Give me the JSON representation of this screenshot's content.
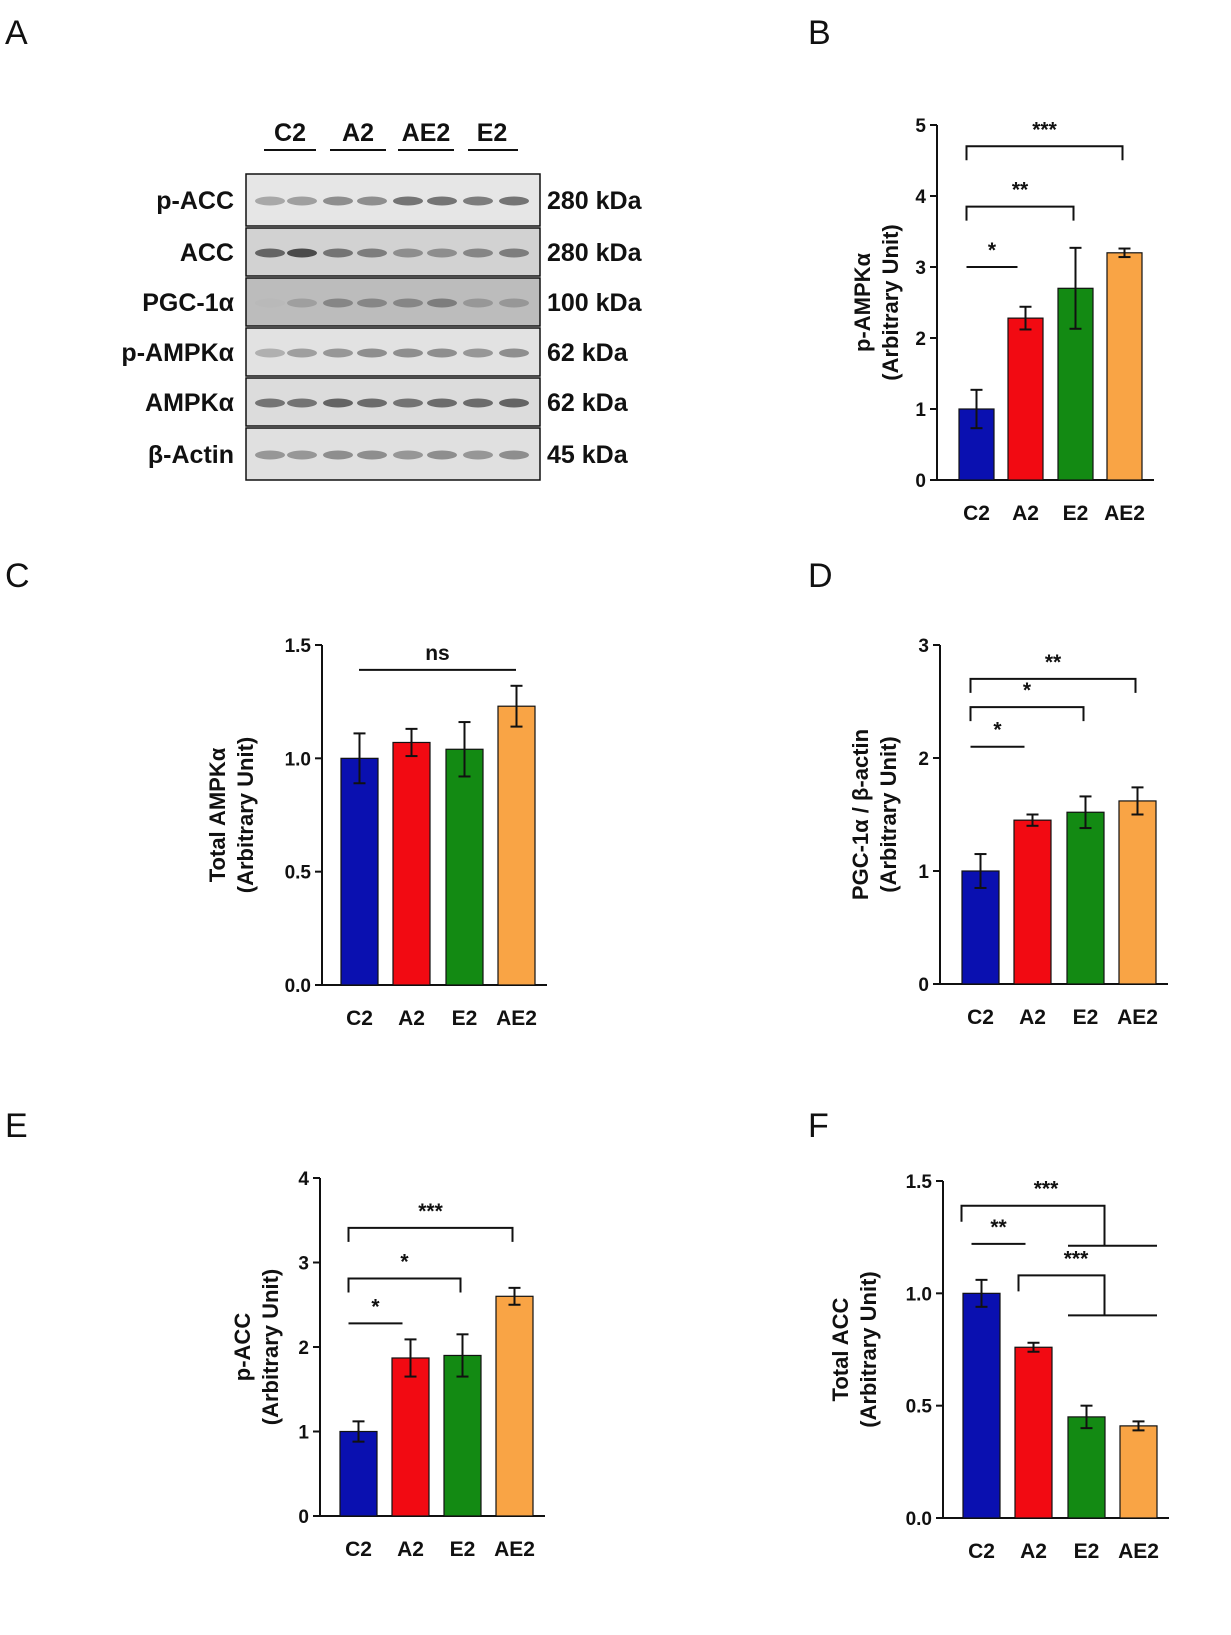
{
  "panel_letters": [
    "A",
    "B",
    "C",
    "D",
    "E",
    "F"
  ],
  "blot": {
    "groups": [
      "C2",
      "A2",
      "AE2",
      "E2"
    ],
    "rows": [
      {
        "label": "p-ACC",
        "size": "280 kDa"
      },
      {
        "label": "ACC",
        "size": "280 kDa"
      },
      {
        "label": "PGC-1α",
        "size": "100 kDa"
      },
      {
        "label": "p-AMPKα",
        "size": "62 kDa"
      },
      {
        "label": "AMPKα",
        "size": "62 kDa"
      },
      {
        "label": "β-Actin",
        "size": "45 kDa"
      }
    ]
  },
  "colors": {
    "C2": "#0a10b0",
    "A2": "#f20a12",
    "E2": "#138a13",
    "AE2": "#f9a445"
  },
  "chart_data": [
    {
      "panel": "B",
      "type": "bar",
      "categories": [
        "C2",
        "A2",
        "E2",
        "AE2"
      ],
      "values": [
        1.0,
        2.28,
        2.7,
        3.2
      ],
      "errors": [
        0.27,
        0.16,
        0.57,
        0.06
      ],
      "ylabel_lines": [
        "p-AMPKα",
        "(Arbitrary Unit)"
      ],
      "ylim": [
        0,
        5
      ],
      "yticks": [
        "0",
        "1",
        "2",
        "3",
        "4",
        "5"
      ],
      "significance": [
        {
          "type": "line",
          "from": "C2",
          "to": "A2",
          "label": "*"
        },
        {
          "type": "bracket",
          "from": "C2",
          "to": "E2",
          "label": "**"
        },
        {
          "type": "bracket",
          "from": "C2",
          "to": "AE2",
          "label": "***"
        }
      ]
    },
    {
      "panel": "C",
      "type": "bar",
      "categories": [
        "C2",
        "A2",
        "E2",
        "AE2"
      ],
      "values": [
        1.0,
        1.07,
        1.04,
        1.23
      ],
      "errors": [
        0.11,
        0.06,
        0.12,
        0.09
      ],
      "ylabel_lines": [
        "Total AMPKα",
        "(Arbitrary Unit)"
      ],
      "ylim": [
        0,
        1.5
      ],
      "yticks": [
        "0.0",
        "0.5",
        "1.0",
        "1.5"
      ],
      "significance": [
        {
          "type": "line",
          "from": "C2",
          "to": "AE2",
          "label": "ns"
        }
      ]
    },
    {
      "panel": "D",
      "type": "bar",
      "categories": [
        "C2",
        "A2",
        "E2",
        "AE2"
      ],
      "values": [
        1.0,
        1.45,
        1.52,
        1.62
      ],
      "errors": [
        0.15,
        0.05,
        0.14,
        0.12
      ],
      "ylabel_lines": [
        "PGC-1α / β-actin",
        "(Arbitrary Unit)"
      ],
      "ylim": [
        0,
        3
      ],
      "yticks": [
        "0",
        "1",
        "2",
        "3"
      ],
      "significance": [
        {
          "type": "line",
          "from": "C2",
          "to": "A2",
          "label": "*"
        },
        {
          "type": "bracket",
          "from": "C2",
          "to": "E2",
          "label": "*"
        },
        {
          "type": "bracket",
          "from": "C2",
          "to": "AE2",
          "label": "**"
        }
      ]
    },
    {
      "panel": "E",
      "type": "bar",
      "categories": [
        "C2",
        "A2",
        "E2",
        "AE2"
      ],
      "values": [
        1.0,
        1.87,
        1.9,
        2.6
      ],
      "errors": [
        0.12,
        0.22,
        0.25,
        0.1
      ],
      "ylabel_lines": [
        "p-ACC",
        "(Arbitrary Unit)"
      ],
      "ylim": [
        0,
        4
      ],
      "yticks": [
        "0",
        "1",
        "2",
        "3",
        "4"
      ],
      "significance": [
        {
          "type": "line",
          "from": "C2",
          "to": "A2",
          "label": "*"
        },
        {
          "type": "bracket",
          "from": "C2",
          "to": "E2",
          "label": "*"
        },
        {
          "type": "bracket",
          "from": "C2",
          "to": "AE2",
          "label": "***"
        }
      ]
    },
    {
      "panel": "F",
      "type": "bar",
      "categories": [
        "C2",
        "A2",
        "E2",
        "AE2"
      ],
      "values": [
        1.0,
        0.76,
        0.45,
        0.41
      ],
      "errors": [
        0.06,
        0.02,
        0.05,
        0.02
      ],
      "ylabel_lines": [
        "Total ACC",
        "(Arbitrary Unit)"
      ],
      "ylim": [
        0,
        1.5
      ],
      "yticks": [
        "0.0",
        "0.5",
        "1.0",
        "1.5"
      ],
      "significance": [
        {
          "type": "line",
          "from": "C2",
          "to": "A2",
          "label": "**"
        },
        {
          "type": "tee",
          "from": "C2",
          "to_group": [
            "E2",
            "AE2"
          ],
          "label": "***"
        },
        {
          "type": "tee",
          "from": "A2",
          "to_group": [
            "E2",
            "AE2"
          ],
          "label": "***"
        }
      ]
    }
  ]
}
